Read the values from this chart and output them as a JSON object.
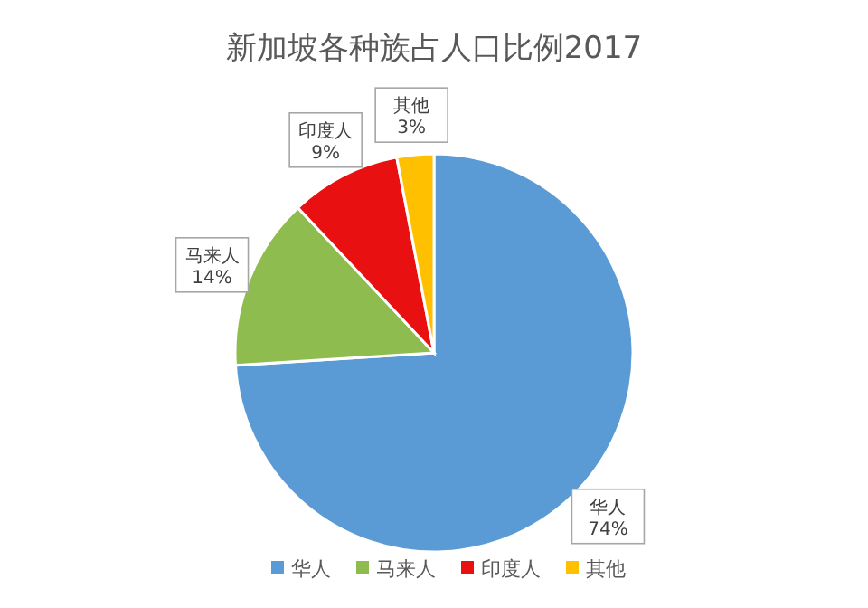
{
  "chart_data": {
    "type": "pie",
    "title": "新加坡各种族占人口比例2017",
    "categories": [
      "华人",
      "马来人",
      "印度人",
      "其他"
    ],
    "values": [
      74,
      14,
      9,
      3
    ],
    "value_labels": [
      "74%",
      "14%",
      "9%",
      "3%"
    ],
    "colors": [
      "#5b9bd5",
      "#8fbc4f",
      "#e81010",
      "#ffc000"
    ],
    "legend": "bottom"
  }
}
